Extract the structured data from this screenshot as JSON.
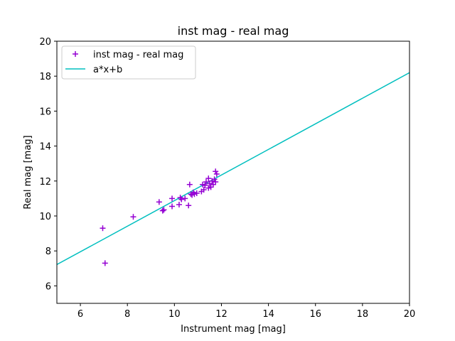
{
  "chart_data": {
    "type": "scatter",
    "title": "inst mag - real mag",
    "xlabel": "Instrument mag [mag]",
    "ylabel": "Real mag [mag]",
    "xlim": [
      5,
      20
    ],
    "ylim": [
      5,
      20
    ],
    "xticks": [
      6,
      8,
      10,
      12,
      14,
      16,
      18,
      20
    ],
    "yticks": [
      6,
      8,
      10,
      12,
      14,
      16,
      18,
      20
    ],
    "grid": false,
    "legend_position": "top-left",
    "series": [
      {
        "name": "inst mag - real mag",
        "kind": "scatter",
        "marker": "plus",
        "color": "#9400d3",
        "points": [
          [
            6.95,
            9.3
          ],
          [
            7.05,
            7.3
          ],
          [
            8.25,
            9.95
          ],
          [
            9.35,
            10.8
          ],
          [
            9.5,
            10.3
          ],
          [
            9.55,
            10.35
          ],
          [
            9.9,
            10.55
          ],
          [
            9.9,
            11.0
          ],
          [
            10.2,
            10.65
          ],
          [
            10.25,
            11.05
          ],
          [
            10.3,
            10.95
          ],
          [
            10.45,
            11.0
          ],
          [
            10.6,
            10.6
          ],
          [
            10.65,
            11.8
          ],
          [
            10.7,
            11.25
          ],
          [
            10.75,
            11.2
          ],
          [
            10.8,
            11.35
          ],
          [
            10.85,
            11.25
          ],
          [
            10.95,
            11.3
          ],
          [
            11.15,
            11.4
          ],
          [
            11.2,
            11.8
          ],
          [
            11.25,
            11.5
          ],
          [
            11.3,
            11.75
          ],
          [
            11.35,
            11.95
          ],
          [
            11.45,
            11.6
          ],
          [
            11.45,
            12.15
          ],
          [
            11.5,
            11.85
          ],
          [
            11.55,
            11.65
          ],
          [
            11.6,
            12.0
          ],
          [
            11.65,
            11.8
          ],
          [
            11.7,
            12.1
          ],
          [
            11.75,
            11.95
          ],
          [
            11.75,
            12.55
          ],
          [
            11.8,
            12.4
          ]
        ]
      },
      {
        "name": "a*x+b",
        "kind": "line",
        "color": "#00bfbf",
        "x": [
          5,
          20
        ],
        "y": [
          7.22,
          18.2
        ]
      }
    ]
  }
}
